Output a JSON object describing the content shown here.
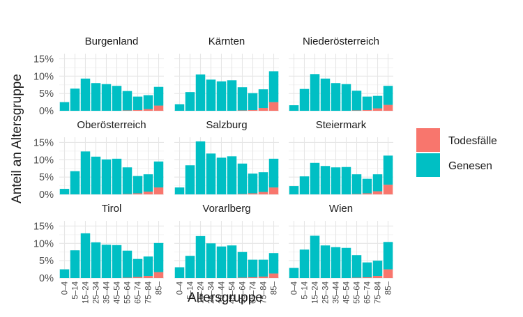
{
  "chart_data": {
    "type": "bar",
    "stacked": true,
    "facet_grid": "3x3",
    "xlabel": "Altersgruppe",
    "ylabel": "Anteil an Altersgruppe",
    "categories": [
      "0–4",
      "5–14",
      "15–24",
      "25–34",
      "35–44",
      "45–54",
      "55–64",
      "65–74",
      "75–84",
      "85–"
    ],
    "y_ticks": [
      0,
      5,
      10,
      15
    ],
    "y_tick_labels": [
      "0%",
      "5%",
      "10%",
      "15%"
    ],
    "ylim": [
      0,
      16.5
    ],
    "legend": {
      "position": "right",
      "entries": [
        {
          "key": "todesfaelle",
          "label": "Todesfälle",
          "color": "#F8766D"
        },
        {
          "key": "genesen",
          "label": "Genesen",
          "color": "#00BFC4"
        }
      ]
    },
    "panels": [
      {
        "name": "Burgenland",
        "genesen": [
          2.5,
          6.4,
          9.3,
          8.0,
          7.7,
          7.2,
          5.6,
          3.9,
          4.0,
          5.4
        ],
        "todesfaelle": [
          0,
          0,
          0,
          0,
          0,
          0,
          0.1,
          0.2,
          0.5,
          1.5
        ]
      },
      {
        "name": "Kärnten",
        "genesen": [
          1.9,
          5.4,
          10.5,
          9.0,
          8.5,
          8.8,
          6.7,
          4.9,
          5.4,
          8.9
        ],
        "todesfaelle": [
          0,
          0,
          0,
          0,
          0,
          0,
          0.1,
          0.2,
          0.8,
          2.5
        ]
      },
      {
        "name": "Niederösterreich",
        "genesen": [
          1.6,
          6.3,
          10.6,
          9.3,
          8.0,
          7.7,
          5.7,
          3.9,
          3.6,
          5.5
        ],
        "todesfaelle": [
          0,
          0,
          0,
          0,
          0,
          0,
          0.1,
          0.2,
          0.7,
          1.7
        ]
      },
      {
        "name": "Oberösterreich",
        "genesen": [
          1.6,
          6.7,
          12.4,
          10.9,
          10.1,
          10.3,
          7.7,
          5.0,
          5.0,
          7.5
        ],
        "todesfaelle": [
          0,
          0,
          0,
          0,
          0,
          0,
          0.1,
          0.3,
          0.8,
          2.0
        ]
      },
      {
        "name": "Salzburg",
        "genesen": [
          2.0,
          8.4,
          15.3,
          11.8,
          10.6,
          11.0,
          8.8,
          5.7,
          5.7,
          8.3
        ],
        "todesfaelle": [
          0,
          0,
          0,
          0,
          0,
          0,
          0.1,
          0.3,
          0.7,
          2.0
        ]
      },
      {
        "name": "Steiermark",
        "genesen": [
          2.4,
          5.2,
          9.1,
          8.2,
          7.8,
          7.9,
          5.7,
          4.2,
          4.9,
          8.4
        ],
        "todesfaelle": [
          0,
          0,
          0,
          0,
          0,
          0,
          0.1,
          0.3,
          0.9,
          2.8
        ]
      },
      {
        "name": "Tirol",
        "genesen": [
          2.5,
          8.0,
          12.9,
          10.3,
          9.6,
          9.5,
          7.8,
          5.2,
          5.6,
          8.4
        ],
        "todesfaelle": [
          0,
          0,
          0,
          0,
          0,
          0,
          0.1,
          0.3,
          0.6,
          1.7
        ]
      },
      {
        "name": "Vorarlberg",
        "genesen": [
          3.1,
          6.4,
          12.1,
          10.0,
          9.1,
          9.4,
          7.4,
          5.1,
          4.9,
          5.9
        ],
        "todesfaelle": [
          0,
          0,
          0,
          0,
          0,
          0,
          0.1,
          0.2,
          0.4,
          1.3
        ]
      },
      {
        "name": "Wien",
        "genesen": [
          2.9,
          8.2,
          12.2,
          9.4,
          8.9,
          8.7,
          6.5,
          4.3,
          4.4,
          7.9
        ],
        "todesfaelle": [
          0,
          0,
          0,
          0,
          0,
          0,
          0.1,
          0.2,
          0.6,
          2.5
        ]
      }
    ]
  }
}
